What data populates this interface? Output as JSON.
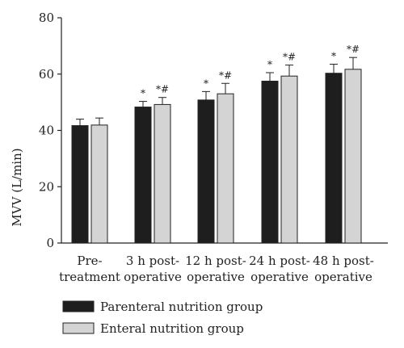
{
  "chart_data": {
    "type": "bar",
    "title": "",
    "xlabel": "",
    "ylabel": "MVV (L/min)",
    "ylim": [
      0,
      80
    ],
    "yticks": [
      0,
      20,
      40,
      60,
      80
    ],
    "grid": false,
    "legend_position": "bottom",
    "categories": [
      [
        "Pre-",
        "treatment"
      ],
      [
        "3 h post-",
        "operative"
      ],
      [
        "12 h post-",
        "operative"
      ],
      [
        "24 h post-",
        "operative"
      ],
      [
        "48 h post-",
        "operative"
      ]
    ],
    "series": [
      {
        "name": "Parenteral nutrition group",
        "color": "#1e1e1e",
        "values": [
          41.7,
          48.3,
          50.8,
          57.5,
          60.3
        ],
        "errors": [
          2.3,
          2.0,
          3.0,
          3.0,
          3.2
        ],
        "markers": [
          "",
          "*",
          "*",
          "*",
          "*"
        ]
      },
      {
        "name": "Enteral nutrition group",
        "color": "#d4d4d4",
        "values": [
          41.9,
          49.2,
          53.0,
          59.3,
          61.7
        ],
        "errors": [
          2.5,
          2.5,
          3.7,
          3.9,
          4.2
        ],
        "markers": [
          "",
          "*#",
          "*#",
          "*#",
          "*#"
        ]
      }
    ]
  }
}
